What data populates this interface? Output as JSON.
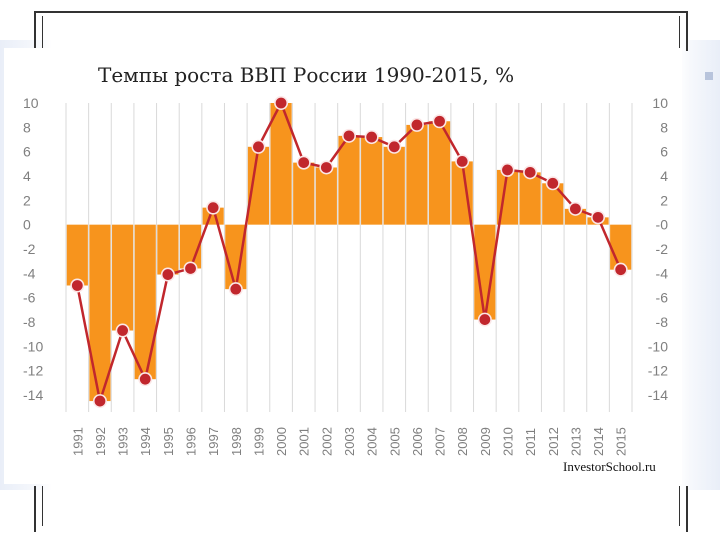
{
  "chart_data": {
    "type": "bar",
    "title": "Темпы роста ВВП России 1990-2015, %",
    "categories": [
      "1991",
      "1992",
      "1993",
      "1994",
      "1995",
      "1996",
      "1997",
      "1998",
      "1999",
      "2000",
      "2001",
      "2002",
      "2003",
      "2004",
      "2005",
      "2006",
      "2007",
      "2008",
      "2009",
      "2010",
      "2011",
      "2012",
      "2013",
      "2014",
      "2015"
    ],
    "values": [
      -5.0,
      -14.5,
      -8.7,
      -12.7,
      -4.1,
      -3.6,
      1.4,
      -5.3,
      6.4,
      10.0,
      5.1,
      4.7,
      7.3,
      7.2,
      6.4,
      8.2,
      8.5,
      5.2,
      -7.8,
      4.5,
      4.3,
      3.4,
      1.3,
      0.6,
      -3.7
    ],
    "ylim": [
      -14,
      10
    ],
    "yticks_left": [
      "10",
      "8",
      "6",
      "4",
      "2",
      "0",
      "-2",
      "-4",
      "-6",
      "-8",
      "-10",
      "-12",
      "-14"
    ],
    "yticks_right": [
      "10",
      "8",
      "6",
      "4",
      "2",
      "-0",
      "-2",
      "-4",
      "-6",
      "-8",
      "-10",
      "-12",
      "-14"
    ],
    "grid": "vertical",
    "bar_color": "#f7941d",
    "line_color": "#c1272d",
    "marker_color": "#c1272d",
    "marker_edge": "#fbe7e7",
    "xlabel": "",
    "ylabel": ""
  },
  "watermark": "InvestorSchool.ru",
  "colors": {
    "frame": "#333333",
    "band": "#e9eef8"
  }
}
